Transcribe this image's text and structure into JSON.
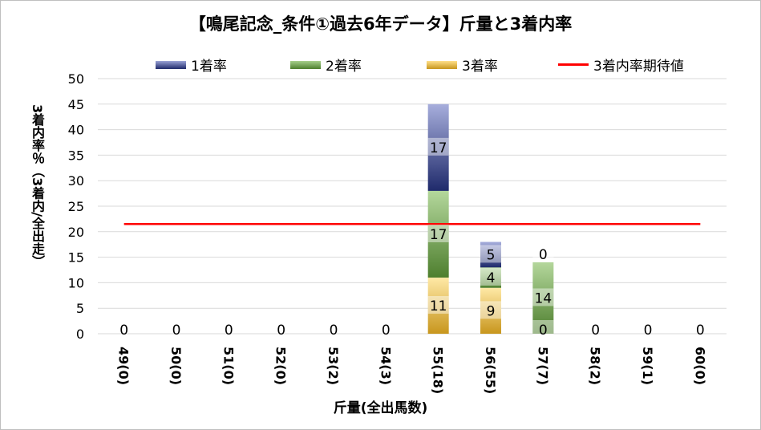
{
  "chart_data": {
    "type": "bar",
    "stacked": true,
    "title": "【鳴尾記念_条件①過去6年データ】斤量と3着内率",
    "xlabel": "斤量(全出馬数)",
    "ylabel": "3着内率％（3着内/全出走）",
    "ylim": [
      0,
      50
    ],
    "yticks": [
      "0",
      "5",
      "10",
      "15",
      "20",
      "25",
      "30",
      "35",
      "40",
      "45",
      "50"
    ],
    "grid": true,
    "legend_position": "top",
    "categories": [
      "49(0)",
      "50(0)",
      "51(0)",
      "52(0)",
      "53(2)",
      "54(3)",
      "55(18)",
      "56(55)",
      "57(7)",
      "58(2)",
      "59(1)",
      "60(0)"
    ],
    "series": [
      {
        "name": "3着率",
        "values": [
          0,
          0,
          0,
          0,
          0,
          0,
          11,
          9,
          0,
          0,
          0,
          0
        ],
        "labels": [
          "",
          "",
          "",
          "",
          "",
          "",
          "11",
          "9",
          "0",
          "",
          "",
          ""
        ],
        "color": "#f4c34f"
      },
      {
        "name": "2着率",
        "values": [
          0,
          0,
          0,
          0,
          0,
          0,
          17,
          4,
          14,
          0,
          0,
          0
        ],
        "labels": [
          "",
          "",
          "",
          "",
          "",
          "",
          "17",
          "4",
          "14",
          "",
          "",
          ""
        ],
        "color": "#70a24a"
      },
      {
        "name": "1着率",
        "values": [
          0,
          0,
          0,
          0,
          0,
          0,
          17,
          5,
          0,
          0,
          0,
          0
        ],
        "labels": [
          "",
          "",
          "",
          "",
          "",
          "",
          "17",
          "5",
          "0",
          "",
          "",
          ""
        ],
        "color": "#4e5aa0"
      }
    ],
    "zero_labels": [
      "0",
      "0",
      "0",
      "0",
      "0",
      "0",
      "",
      "",
      "",
      "0",
      "0",
      "0"
    ],
    "reference_line": {
      "name": "3着内率期待値",
      "value": 21.5,
      "color": "#ff0000"
    }
  }
}
